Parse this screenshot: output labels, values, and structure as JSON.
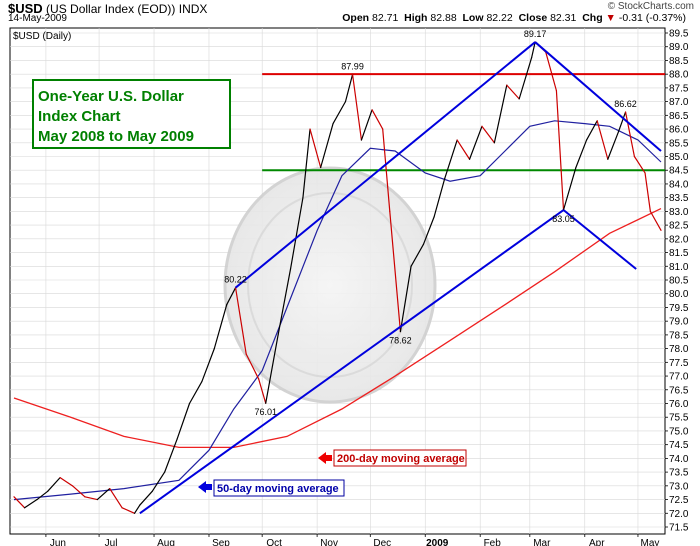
{
  "header": {
    "symbol": "$USD",
    "name": "(US Dollar Index (EOD))",
    "exchange": "INDX",
    "date": "14-May-2009",
    "brand": "© StockCharts.com",
    "open_label": "Open",
    "open": "82.71",
    "high_label": "High",
    "high": "82.88",
    "low_label": "Low",
    "low": "82.22",
    "close_label": "Close",
    "close": "82.31",
    "chg_label": "Chg",
    "chg": "-0.31 (-0.37%)",
    "chg_arrow": "▼",
    "panel_label": "$USD (Daily)"
  },
  "annotation_box": {
    "lines": [
      "One-Year U.S. Dollar",
      "Index Chart",
      "May 2008 to May 2009"
    ],
    "text_color": "#008000",
    "border_color": "#008000"
  },
  "callouts": {
    "ma200": "200-day moving average",
    "ma50": "50-day moving average"
  },
  "colors": {
    "price_up": "#000000",
    "price_down": "#cc0000",
    "ma50": "#2020a0",
    "ma200": "#ee2020",
    "trend": "#0000dd",
    "resistance": "#dd0000",
    "support": "#008800",
    "grid": "#d8d8d8"
  },
  "chart_data": {
    "type": "line",
    "title": "$USD (Daily)",
    "ylim": [
      71.5,
      89.5
    ],
    "yticks": [
      71.5,
      72.0,
      72.5,
      73.0,
      73.5,
      74.0,
      74.5,
      75.0,
      75.5,
      76.0,
      76.5,
      77.0,
      77.5,
      78.0,
      78.5,
      79.0,
      79.5,
      80.0,
      80.5,
      81.0,
      81.5,
      82.0,
      82.5,
      83.0,
      83.5,
      84.0,
      84.5,
      85.0,
      85.5,
      86.0,
      86.5,
      87.0,
      87.5,
      88.0,
      88.5,
      89.0,
      89.5
    ],
    "x_range": [
      "2008-05-14",
      "2009-05-14"
    ],
    "x_tick_labels": [
      {
        "label": "Jun",
        "date": "2008-06-01"
      },
      {
        "label": "Jul",
        "date": "2008-07-01"
      },
      {
        "label": "Aug",
        "date": "2008-08-01"
      },
      {
        "label": "Sep",
        "date": "2008-09-01"
      },
      {
        "label": "Oct",
        "date": "2008-10-01"
      },
      {
        "label": "Nov",
        "date": "2008-11-01"
      },
      {
        "label": "Dec",
        "date": "2008-12-01"
      },
      {
        "label": "2009",
        "date": "2009-01-01",
        "bold": true
      },
      {
        "label": "Feb",
        "date": "2009-02-01"
      },
      {
        "label": "Mar",
        "date": "2009-03-01"
      },
      {
        "label": "Apr",
        "date": "2009-04-01"
      },
      {
        "label": "May",
        "date": "2009-05-01"
      }
    ],
    "price_series": {
      "name": "$USD",
      "points": [
        [
          "2008-05-14",
          72.6
        ],
        [
          "2008-05-20",
          72.2
        ],
        [
          "2008-05-27",
          72.5
        ],
        [
          "2008-06-02",
          72.8
        ],
        [
          "2008-06-09",
          73.3
        ],
        [
          "2008-06-16",
          73.0
        ],
        [
          "2008-06-23",
          72.6
        ],
        [
          "2008-06-30",
          72.5
        ],
        [
          "2008-07-07",
          72.9
        ],
        [
          "2008-07-14",
          72.2
        ],
        [
          "2008-07-21",
          72.0
        ],
        [
          "2008-07-24",
          72.3
        ],
        [
          "2008-07-31",
          72.8
        ],
        [
          "2008-08-07",
          73.5
        ],
        [
          "2008-08-14",
          74.7
        ],
        [
          "2008-08-21",
          76.0
        ],
        [
          "2008-08-28",
          76.8
        ],
        [
          "2008-09-04",
          78.0
        ],
        [
          "2008-09-11",
          79.6
        ],
        [
          "2008-09-16",
          80.22
        ],
        [
          "2008-09-22",
          77.8
        ],
        [
          "2008-09-29",
          76.9
        ],
        [
          "2008-10-03",
          76.01
        ],
        [
          "2008-10-10",
          78.5
        ],
        [
          "2008-10-17",
          80.9
        ],
        [
          "2008-10-24",
          83.5
        ],
        [
          "2008-10-28",
          86.0
        ],
        [
          "2008-11-03",
          84.6
        ],
        [
          "2008-11-10",
          86.2
        ],
        [
          "2008-11-17",
          87.0
        ],
        [
          "2008-11-21",
          87.99
        ],
        [
          "2008-11-26",
          85.6
        ],
        [
          "2008-12-02",
          86.7
        ],
        [
          "2008-12-08",
          86.0
        ],
        [
          "2008-12-12",
          83.0
        ],
        [
          "2008-12-18",
          78.62
        ],
        [
          "2008-12-24",
          81.0
        ],
        [
          "2008-12-31",
          81.8
        ],
        [
          "2009-01-06",
          82.8
        ],
        [
          "2009-01-12",
          84.2
        ],
        [
          "2009-01-19",
          85.6
        ],
        [
          "2009-01-26",
          84.9
        ],
        [
          "2009-02-02",
          86.1
        ],
        [
          "2009-02-09",
          85.5
        ],
        [
          "2009-02-16",
          87.6
        ],
        [
          "2009-02-23",
          87.1
        ],
        [
          "2009-03-02",
          88.6
        ],
        [
          "2009-03-04",
          89.17
        ],
        [
          "2009-03-10",
          88.8
        ],
        [
          "2009-03-16",
          87.4
        ],
        [
          "2009-03-20",
          83.05
        ],
        [
          "2009-03-27",
          84.6
        ],
        [
          "2009-04-02",
          85.6
        ],
        [
          "2009-04-08",
          86.3
        ],
        [
          "2009-04-14",
          84.9
        ],
        [
          "2009-04-20",
          85.9
        ],
        [
          "2009-04-24",
          86.62
        ],
        [
          "2009-04-29",
          85.0
        ],
        [
          "2009-05-05",
          84.4
        ],
        [
          "2009-05-08",
          83.0
        ],
        [
          "2009-05-14",
          82.31
        ]
      ]
    },
    "ma50": {
      "name": "50-day moving average",
      "points": [
        [
          "2008-05-14",
          72.5
        ],
        [
          "2008-06-15",
          72.7
        ],
        [
          "2008-07-15",
          72.9
        ],
        [
          "2008-08-15",
          73.2
        ],
        [
          "2008-09-01",
          74.3
        ],
        [
          "2008-09-15",
          75.8
        ],
        [
          "2008-10-01",
          77.2
        ],
        [
          "2008-10-15",
          79.5
        ],
        [
          "2008-11-01",
          82.3
        ],
        [
          "2008-11-15",
          84.3
        ],
        [
          "2008-12-01",
          85.3
        ],
        [
          "2008-12-15",
          85.2
        ],
        [
          "2009-01-01",
          84.4
        ],
        [
          "2009-01-15",
          84.1
        ],
        [
          "2009-02-01",
          84.3
        ],
        [
          "2009-02-15",
          85.2
        ],
        [
          "2009-03-01",
          86.1
        ],
        [
          "2009-03-15",
          86.3
        ],
        [
          "2009-04-01",
          86.2
        ],
        [
          "2009-04-15",
          86.1
        ],
        [
          "2009-05-01",
          85.6
        ],
        [
          "2009-05-14",
          84.8
        ]
      ]
    },
    "ma200": {
      "name": "200-day moving average",
      "points": [
        [
          "2008-05-14",
          76.2
        ],
        [
          "2008-06-15",
          75.5
        ],
        [
          "2008-07-15",
          74.8
        ],
        [
          "2008-08-15",
          74.4
        ],
        [
          "2008-09-15",
          74.4
        ],
        [
          "2008-10-15",
          74.8
        ],
        [
          "2008-11-15",
          75.8
        ],
        [
          "2008-12-15",
          77.0
        ],
        [
          "2009-01-15",
          78.3
        ],
        [
          "2009-02-15",
          79.6
        ],
        [
          "2009-03-15",
          80.8
        ],
        [
          "2009-04-15",
          82.2
        ],
        [
          "2009-05-14",
          83.1
        ]
      ]
    },
    "data_labels": [
      {
        "date": "2008-09-16",
        "value": 80.22,
        "label": "80.22",
        "pos": "above"
      },
      {
        "date": "2008-10-03",
        "value": 76.01,
        "label": "76.01",
        "pos": "below"
      },
      {
        "date": "2008-11-21",
        "value": 87.99,
        "label": "87.99",
        "pos": "above"
      },
      {
        "date": "2008-12-18",
        "value": 78.62,
        "label": "78.62",
        "pos": "below"
      },
      {
        "date": "2009-03-04",
        "value": 89.17,
        "label": "89.17",
        "pos": "above"
      },
      {
        "date": "2009-03-20",
        "value": 83.05,
        "label": "83.05",
        "pos": "below"
      },
      {
        "date": "2009-04-24",
        "value": 86.62,
        "label": "86.62",
        "pos": "above"
      }
    ],
    "horizontal_lines": [
      {
        "name": "resistance",
        "value": 88.0,
        "from": "2008-10-01",
        "to": "2009-05-14",
        "color": "#dd0000"
      },
      {
        "name": "support",
        "value": 84.5,
        "from": "2008-10-01",
        "to": "2009-05-14",
        "color": "#008800"
      }
    ],
    "trend_lines": [
      {
        "name": "channel-lower",
        "from": [
          "2008-07-24",
          72.0
        ],
        "to": [
          "2009-03-20",
          83.05
        ]
      },
      {
        "name": "channel-upper",
        "from": [
          "2008-09-16",
          80.22
        ],
        "to": [
          "2009-03-04",
          89.17
        ]
      },
      {
        "name": "upper-down",
        "from": [
          "2009-03-04",
          89.17
        ],
        "to": [
          "2009-05-14",
          85.2
        ]
      },
      {
        "name": "lower-down",
        "from": [
          "2009-03-20",
          83.05
        ],
        "to": [
          "2009-04-30",
          80.9
        ]
      }
    ],
    "grid": true
  }
}
